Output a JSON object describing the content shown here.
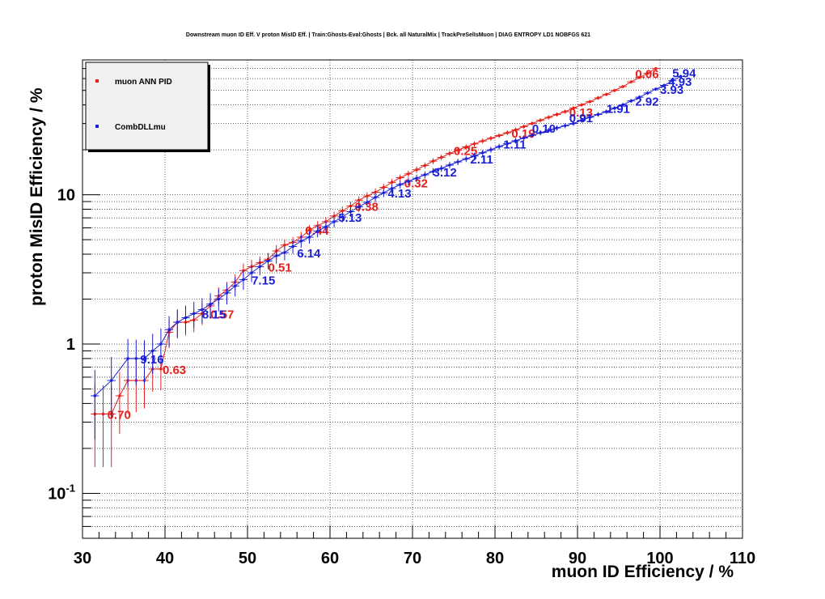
{
  "chart_data": {
    "type": "scatter",
    "title": "Downstream muon ID Eff. V proton MisID Eff. | Train:Ghosts-Eval:Ghosts | Bck. all NaturalMix | TrackPreSelIsMuon | DIAG ENTROPY LD1 NOBFGS 621",
    "xlabel": "muon ID Efficiency / %",
    "ylabel": "proton MisID Efficiency / %",
    "xlim": [
      30,
      110
    ],
    "ylim": [
      0.05,
      80
    ],
    "yscale": "log",
    "grid": true,
    "legend_position": "top-left",
    "x_ticks": [
      {
        "v": 30,
        "label": "30"
      },
      {
        "v": 40,
        "label": "40"
      },
      {
        "v": 50,
        "label": "50"
      },
      {
        "v": 60,
        "label": "60"
      },
      {
        "v": 70,
        "label": "70"
      },
      {
        "v": 80,
        "label": "80"
      },
      {
        "v": 90,
        "label": "90"
      },
      {
        "v": 100,
        "label": "100"
      },
      {
        "v": 110,
        "label": "110"
      }
    ],
    "y_ticks": [
      {
        "v": 0.1,
        "base": "10",
        "exp": "-1"
      },
      {
        "v": 1,
        "base": "1",
        "exp": ""
      },
      {
        "v": 10,
        "base": "10",
        "exp": ""
      }
    ],
    "series": [
      {
        "name": "muon ANN PID",
        "color": "#e8201c",
        "x": [
          31.5,
          32.5,
          33.5,
          34.5,
          35.5,
          36.5,
          37.5,
          38.5,
          39.5,
          40.5,
          41.5,
          42.5,
          43.5,
          44.5,
          45.5,
          46.5,
          47.5,
          48.5,
          49.5,
          50.5,
          51.5,
          52.5,
          53.5,
          54.5,
          55.5,
          56.5,
          57.5,
          58.5,
          59.5,
          60.5,
          61.5,
          62.5,
          63.5,
          64.5,
          65.5,
          66.5,
          67.5,
          68.5,
          69.5,
          70.5,
          71.5,
          72.5,
          73.5,
          74.5,
          75.5,
          76.5,
          77.5,
          78.5,
          79.5,
          80.5,
          81.5,
          82.5,
          83.5,
          84.5,
          85.5,
          86.5,
          87.5,
          88.5,
          89.5,
          90.5,
          91.5,
          92.5,
          93.5,
          94.5,
          95.5,
          96.5,
          97.5,
          98.5,
          99.5
        ],
        "y": [
          0.34,
          0.34,
          0.34,
          0.45,
          0.57,
          0.57,
          0.57,
          0.68,
          0.68,
          1.2,
          1.4,
          1.4,
          1.45,
          1.6,
          1.8,
          2.1,
          2.3,
          2.6,
          3.1,
          3.3,
          3.5,
          3.7,
          4.2,
          4.6,
          4.8,
          5.2,
          5.8,
          6.2,
          6.6,
          7.2,
          7.8,
          8.4,
          9.2,
          9.8,
          10.4,
          11.2,
          12.1,
          13.0,
          13.8,
          14.7,
          15.7,
          16.8,
          17.8,
          18.9,
          19.9,
          20.9,
          21.9,
          22.9,
          23.9,
          24.9,
          26.0,
          27.2,
          28.6,
          30.0,
          31.5,
          33.0,
          34.5,
          36.0,
          38.0,
          40.0,
          42.0,
          44.5,
          47.0,
          50.0,
          53.0,
          57.0,
          61.0,
          65.0,
          70.0
        ],
        "xerr": 0.5,
        "yerr": [
          0.19,
          0.19,
          0.19,
          0.2,
          0.23,
          0.22,
          0.2,
          0.2,
          0.19,
          0.26,
          0.28,
          0.26,
          0.25,
          0.26,
          0.28,
          0.3,
          0.31,
          0.33,
          0.36,
          0.37,
          0.37,
          0.38,
          0.4,
          0.42,
          0.42,
          0.44,
          0.46,
          0.47,
          0.49,
          0.51,
          0.53,
          0.55,
          0.57,
          0.59,
          0.6,
          0.62,
          0.65,
          0.67,
          0.69,
          0.71,
          0.73,
          0.76,
          0.78,
          0.8,
          0.82,
          0.84,
          0.86,
          0.88,
          0.9,
          0.92,
          0.94,
          0.96,
          0.99,
          1.01,
          1.04,
          1.06,
          1.09,
          1.11,
          1.14,
          1.17,
          1.2,
          1.23,
          1.27,
          1.3,
          1.34,
          1.39,
          1.43,
          1.48,
          1.53
        ],
        "annotations": [
          {
            "x": 33.0,
            "y": 0.34,
            "label": "0.70"
          },
          {
            "x": 39.7,
            "y": 0.68,
            "label": "0.63"
          },
          {
            "x": 45.5,
            "y": 1.6,
            "label": "0.57"
          },
          {
            "x": 52.5,
            "y": 3.3,
            "label": "0.51"
          },
          {
            "x": 57.0,
            "y": 5.8,
            "label": "0.44"
          },
          {
            "x": 63.0,
            "y": 8.4,
            "label": "0.38"
          },
          {
            "x": 69.0,
            "y": 12.1,
            "label": "0.32"
          },
          {
            "x": 75.0,
            "y": 19.9,
            "label": "0.25"
          },
          {
            "x": 82.0,
            "y": 26.0,
            "label": "0.19"
          },
          {
            "x": 89.0,
            "y": 36.0,
            "label": "0.13"
          },
          {
            "x": 97.0,
            "y": 65.0,
            "label": "0.06"
          }
        ]
      },
      {
        "name": "CombDLLmu",
        "color": "#1a1fd6",
        "x": [
          31.5,
          33.5,
          35.5,
          36.5,
          37.5,
          38.5,
          39.5,
          40.5,
          41.5,
          42.5,
          43.5,
          44.5,
          45.5,
          46.5,
          47.5,
          48.5,
          49.5,
          50.5,
          51.5,
          52.5,
          53.5,
          54.5,
          55.5,
          56.5,
          57.5,
          58.5,
          59.5,
          60.5,
          61.5,
          62.5,
          63.5,
          64.5,
          65.5,
          66.5,
          67.5,
          68.5,
          69.5,
          70.5,
          71.5,
          72.5,
          73.5,
          74.5,
          75.5,
          76.5,
          77.5,
          78.5,
          79.5,
          80.5,
          81.5,
          82.5,
          83.5,
          84.5,
          85.5,
          86.5,
          87.5,
          88.5,
          89.5,
          90.5,
          91.5,
          92.5,
          93.5,
          94.5,
          95.5,
          96.5,
          97.5,
          98.5,
          99.5,
          100.5,
          101.5,
          102.5
        ],
        "y": [
          0.45,
          0.57,
          0.8,
          0.8,
          0.8,
          0.9,
          1.0,
          1.25,
          1.4,
          1.5,
          1.6,
          1.7,
          1.85,
          2.0,
          2.2,
          2.45,
          2.7,
          3.0,
          3.3,
          3.6,
          3.9,
          4.1,
          4.5,
          4.9,
          5.2,
          5.7,
          6.1,
          6.6,
          7.1,
          7.7,
          8.3,
          8.9,
          9.6,
          10.3,
          11.0,
          11.7,
          12.3,
          12.9,
          13.6,
          14.3,
          15.0,
          15.8,
          16.6,
          17.4,
          18.2,
          19.1,
          20.0,
          21.0,
          22.0,
          23.0,
          24.0,
          25.0,
          26.0,
          27.0,
          28.0,
          29.0,
          30.0,
          31.5,
          33.0,
          34.5,
          36.0,
          38.0,
          40.0,
          42.5,
          45.0,
          48.0,
          51.0,
          54.0,
          58.0,
          62.0
        ],
        "xerr": 0.5,
        "yerr": [
          0.22,
          0.25,
          0.28,
          0.27,
          0.26,
          0.27,
          0.27,
          0.29,
          0.31,
          0.31,
          0.32,
          0.33,
          0.34,
          0.35,
          0.36,
          0.37,
          0.39,
          0.4,
          0.42,
          0.43,
          0.45,
          0.46,
          0.47,
          0.49,
          0.5,
          0.52,
          0.54,
          0.56,
          0.57,
          0.59,
          0.61,
          0.63,
          0.65,
          0.67,
          0.69,
          0.7,
          0.72,
          0.74,
          0.76,
          0.78,
          0.79,
          0.81,
          0.83,
          0.85,
          0.87,
          0.89,
          0.91,
          0.93,
          0.95,
          0.97,
          0.99,
          1.01,
          1.03,
          1.05,
          1.07,
          1.09,
          1.11,
          1.14,
          1.17,
          1.2,
          1.23,
          1.26,
          1.29,
          1.33,
          1.37,
          1.41,
          1.45,
          1.49,
          1.54,
          1.59
        ],
        "annotations": [
          {
            "x": 37.0,
            "y": 0.8,
            "label": "9.16"
          },
          {
            "x": 44.5,
            "y": 1.6,
            "label": "8.15"
          },
          {
            "x": 50.5,
            "y": 2.7,
            "label": "7.15"
          },
          {
            "x": 56.0,
            "y": 4.1,
            "label": "6.14"
          },
          {
            "x": 61.0,
            "y": 7.1,
            "label": "5.13"
          },
          {
            "x": 67.0,
            "y": 10.3,
            "label": "4.13"
          },
          {
            "x": 72.5,
            "y": 14.3,
            "label": "3.12"
          },
          {
            "x": 77.0,
            "y": 17.4,
            "label": "2.11"
          },
          {
            "x": 81.0,
            "y": 22.0,
            "label": "1.11"
          },
          {
            "x": 84.5,
            "y": 28.0,
            "label": "0.10"
          },
          {
            "x": 89.0,
            "y": 33.0,
            "label": "0.91"
          },
          {
            "x": 93.5,
            "y": 38.0,
            "label": "1.91"
          },
          {
            "x": 97.0,
            "y": 42.5,
            "label": "2.92"
          },
          {
            "x": 100.0,
            "y": 51.0,
            "label": "3.93"
          },
          {
            "x": 101.0,
            "y": 58.0,
            "label": "4.93"
          },
          {
            "x": 101.5,
            "y": 66.0,
            "label": "5.94"
          }
        ]
      }
    ]
  }
}
